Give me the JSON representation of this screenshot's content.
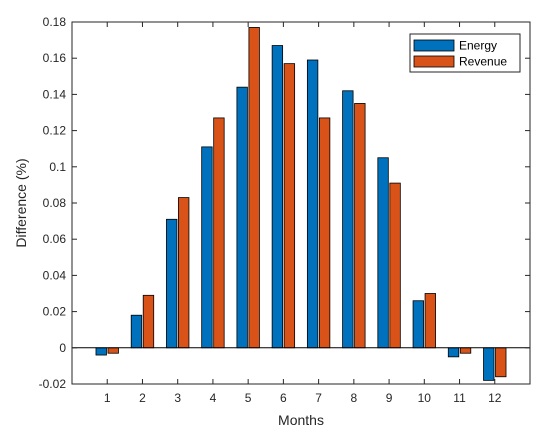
{
  "chart_data": {
    "type": "bar",
    "xlabel": "Months",
    "ylabel": "Difference (%)",
    "categories": [
      "1",
      "2",
      "3",
      "4",
      "5",
      "6",
      "7",
      "8",
      "9",
      "10",
      "11",
      "12"
    ],
    "series": [
      {
        "name": "Energy",
        "color": "#0072BD",
        "values": [
          -0.004,
          0.018,
          0.071,
          0.111,
          0.144,
          0.167,
          0.159,
          0.142,
          0.105,
          0.026,
          -0.005,
          -0.018
        ]
      },
      {
        "name": "Revenue",
        "color": "#D95319",
        "values": [
          -0.003,
          0.029,
          0.083,
          0.127,
          0.177,
          0.157,
          0.127,
          0.135,
          0.091,
          0.03,
          -0.003,
          -0.016
        ]
      }
    ],
    "ylim": [
      -0.02,
      0.18
    ],
    "yticks": [
      -0.02,
      0,
      0.02,
      0.04,
      0.06,
      0.08,
      0.1,
      0.12,
      0.14,
      0.16,
      0.18
    ],
    "ytick_labels": [
      "-0.02",
      "0",
      "0.02",
      "0.04",
      "0.06",
      "0.08",
      "0.1",
      "0.12",
      "0.14",
      "0.16",
      "0.18"
    ],
    "grid": false,
    "legend_position": "top-right"
  }
}
